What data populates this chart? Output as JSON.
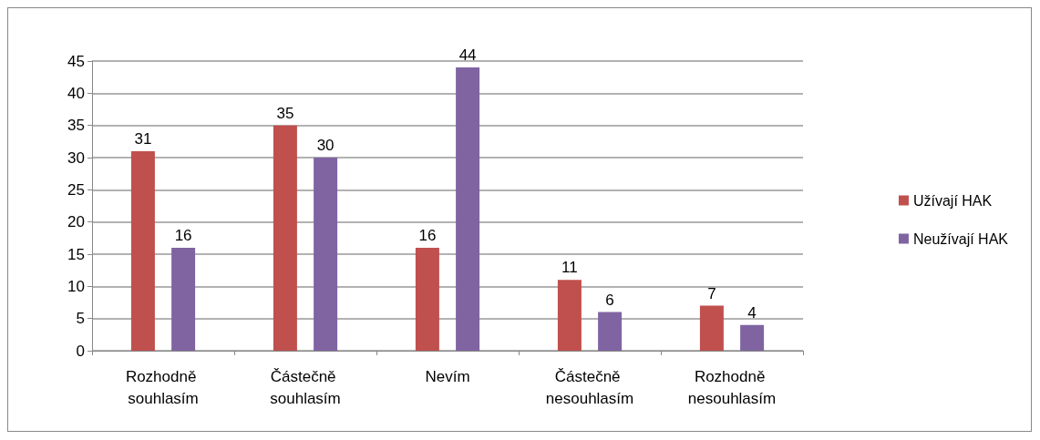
{
  "chart_data": {
    "type": "bar",
    "categories": [
      "Rozhodně souhlasím",
      "Částečně souhlasím",
      "Nevím",
      "Částečně nesouhlasím",
      "Rozhodně nesouhlasím"
    ],
    "series": [
      {
        "name": "Užívají HAK",
        "color": "#c0504d",
        "values": [
          31,
          35,
          16,
          11,
          7
        ]
      },
      {
        "name": "Neužívají HAK",
        "color": "#8064a2",
        "values": [
          16,
          30,
          44,
          6,
          4
        ]
      }
    ],
    "ylim": [
      0,
      45
    ],
    "yticks": [
      0,
      5,
      10,
      15,
      20,
      25,
      30,
      35,
      40,
      45
    ],
    "grid": "y",
    "legend": "right",
    "data_labels": true
  }
}
